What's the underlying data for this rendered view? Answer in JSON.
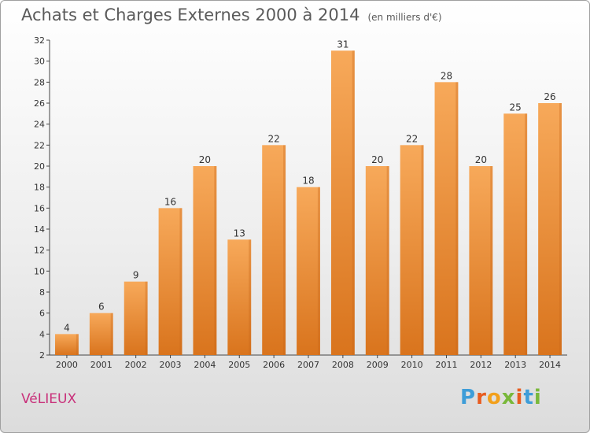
{
  "title": "Achats et Charges Externes 2000 à 2014",
  "unit": "(en milliers d'€)",
  "commune": "VéLIEUX",
  "logo": {
    "letters": [
      "P",
      "r",
      "o",
      "x",
      "i",
      "t",
      "i"
    ],
    "colors": [
      "#3e9dd8",
      "#e85c1f",
      "#f2a01c",
      "#79b83a",
      "#e85c1f",
      "#3e9dd8",
      "#79b83a"
    ]
  },
  "chart_data": {
    "type": "bar",
    "title": "Achats et Charges Externes 2000 à 2014",
    "categories": [
      "2000",
      "2001",
      "2002",
      "2003",
      "2004",
      "2005",
      "2006",
      "2007",
      "2008",
      "2009",
      "2010",
      "2011",
      "2012",
      "2013",
      "2014"
    ],
    "values": [
      4,
      6,
      9,
      16,
      20,
      13,
      22,
      18,
      31,
      20,
      22,
      28,
      20,
      25,
      26
    ],
    "ylim": [
      2,
      32
    ],
    "yticks": [
      2,
      4,
      6,
      8,
      10,
      12,
      14,
      16,
      18,
      20,
      22,
      24,
      26,
      28,
      30,
      32
    ],
    "grid": false,
    "bar_color": "#f0913a",
    "xlabel": "",
    "ylabel": ""
  }
}
